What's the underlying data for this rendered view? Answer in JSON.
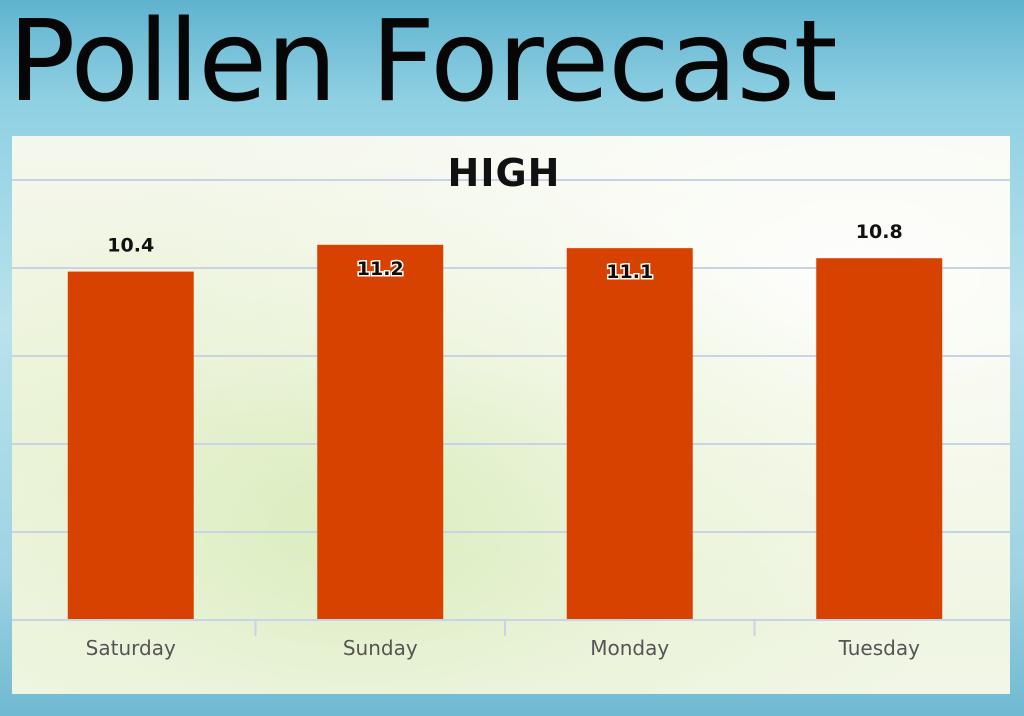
{
  "page": {
    "title": "Pollen Forecast"
  },
  "chart_data": {
    "type": "bar",
    "title": "HIGH",
    "categories": [
      "Saturday",
      "Sunday",
      "Monday",
      "Tuesday"
    ],
    "values": [
      10.4,
      11.2,
      11.1,
      10.8
    ],
    "value_labels": [
      "10.4",
      "11.2",
      "11.1",
      "10.8"
    ],
    "label_position": [
      "above",
      "inside",
      "inside",
      "above"
    ],
    "xlabel": "",
    "ylabel": "",
    "ylim": [
      0,
      12
    ],
    "grid": true,
    "bar_color": "#d84200"
  }
}
